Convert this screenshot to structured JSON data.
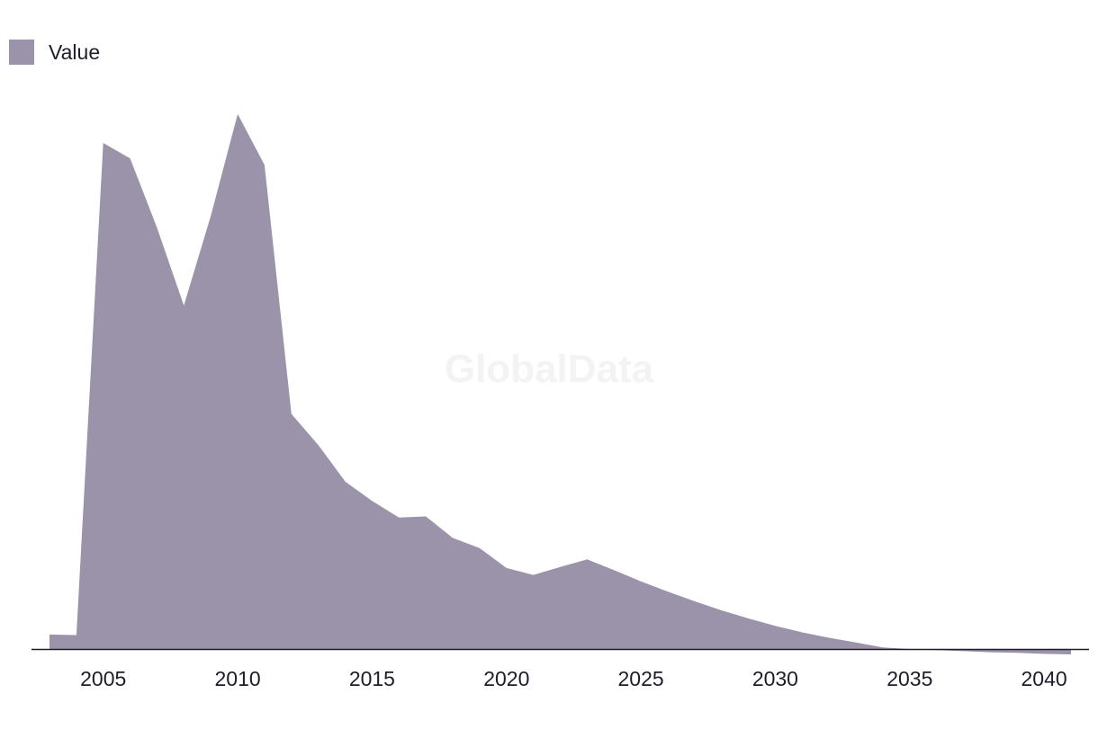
{
  "watermark": "GlobalData",
  "chart_data": {
    "type": "area",
    "title": "",
    "xlabel": "",
    "ylabel": "",
    "legend": {
      "position": "top-left"
    },
    "grid": false,
    "color": "#9b93aa",
    "x_ticks": [
      "2005",
      "2010",
      "2015",
      "2020",
      "2025",
      "2030",
      "2035",
      "2040"
    ],
    "xlim": [
      2003,
      2041
    ],
    "ylim": [
      0,
      100
    ],
    "series": [
      {
        "name": "Value",
        "x": [
          2003,
          2004,
          2005,
          2006,
          2007,
          2008,
          2009,
          2010,
          2011,
          2012,
          2013,
          2014,
          2015,
          2016,
          2017,
          2018,
          2019,
          2020,
          2021,
          2022,
          2023,
          2024,
          2025,
          2026,
          2027,
          2028,
          2029,
          2030,
          2031,
          2032,
          2033,
          2034,
          2035,
          2036,
          2037,
          2038,
          2039,
          2040,
          2041
        ],
        "values": [
          2.7,
          2.6,
          94.3,
          91.4,
          78.5,
          64.0,
          80.7,
          99.7,
          90.2,
          43.8,
          38.0,
          31.2,
          27.6,
          24.5,
          24.7,
          20.7,
          18.8,
          15.1,
          13.8,
          15.3,
          16.7,
          14.7,
          12.6,
          10.7,
          8.9,
          7.2,
          5.7,
          4.3,
          3.1,
          2.1,
          1.2,
          0.3,
          0.0,
          -0.2,
          -0.4,
          -0.6,
          -0.7,
          -0.9,
          -1.0
        ]
      }
    ]
  }
}
